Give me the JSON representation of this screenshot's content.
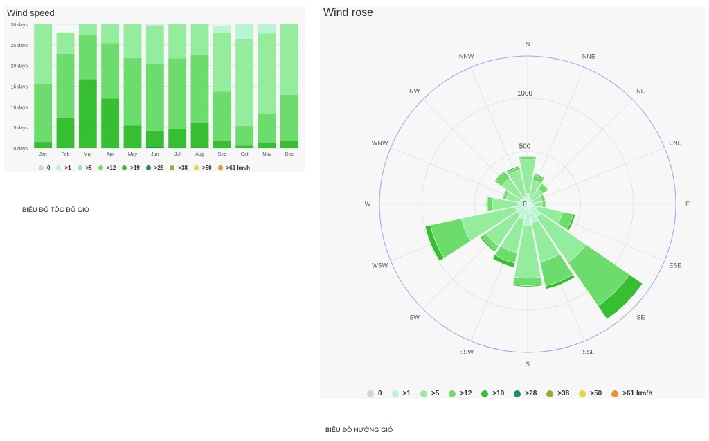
{
  "wind_speed": {
    "title": "Wind speed",
    "caption": "BIỂU ĐỒ TỐC ĐỘ GIÓ"
  },
  "wind_rose": {
    "title": "Wind rose",
    "caption": "BIỂU ĐỒ HƯỚNG GIÓ"
  },
  "legend": [
    {
      "label": "0",
      "color": "#d9d3d6"
    },
    {
      "label": ">1",
      "color": "#b9f5d3"
    },
    {
      "label": ">5",
      "color": "#94ed9c"
    },
    {
      "label": ">12",
      "color": "#6cdc6c"
    },
    {
      "label": ">19",
      "color": "#36bf30"
    },
    {
      "label": ">28",
      "color": "#1f8f55"
    },
    {
      "label": ">38",
      "color": "#8cb32c"
    },
    {
      "label": ">50",
      "color": "#e1d83a"
    },
    {
      "label": ">61 km/h",
      "color": "#e39530"
    }
  ],
  "chart_data": [
    {
      "type": "bar",
      "stacked": true,
      "title": "Wind speed",
      "ylim": [
        0,
        30
      ],
      "yticks": [
        "0 days",
        "5 days",
        "10 days",
        "15 days",
        "20 days",
        "25 days",
        "30 days"
      ],
      "ytick_values": [
        0,
        5,
        10,
        15,
        20,
        25,
        30
      ],
      "categories": [
        "Jan",
        "Feb",
        "Mar",
        "Apr",
        "May",
        "Jun",
        "Jul",
        "Aug",
        "Sep",
        "Oct",
        "Nov",
        "Dec"
      ],
      "series": [
        {
          "name": ">28",
          "color": "#1f8f55",
          "values": [
            0,
            0,
            0,
            0,
            0,
            0.2,
            0.1,
            0.1,
            0,
            0,
            0,
            0
          ]
        },
        {
          "name": ">19",
          "color": "#36bf30",
          "values": [
            1.5,
            7.3,
            16.7,
            12,
            5.5,
            4,
            4.6,
            6,
            1.7,
            0.6,
            1.3,
            1.9
          ]
        },
        {
          "name": ">12",
          "color": "#6cdc6c",
          "values": [
            14,
            15.5,
            10.8,
            13.4,
            16.3,
            16.3,
            17,
            16.5,
            12,
            4.8,
            7,
            11
          ]
        },
        {
          "name": ">5",
          "color": "#94ed9c",
          "values": [
            14.5,
            5.2,
            2.5,
            4.6,
            8.2,
            9,
            8.3,
            7.4,
            14.3,
            21.1,
            19.5,
            17.1
          ]
        },
        {
          "name": ">1",
          "color": "#b9f5d3",
          "values": [
            0,
            0,
            0,
            0,
            0,
            0.4,
            0,
            0,
            1.7,
            3.5,
            2.2,
            0
          ]
        }
      ]
    },
    {
      "type": "polar-stacked-bar",
      "title": "Wind rose",
      "rmax": 1400,
      "rticks": [
        0,
        500,
        1000
      ],
      "directions": [
        "N",
        "NNE",
        "NE",
        "ENE",
        "E",
        "ESE",
        "SE",
        "SSE",
        "S",
        "SSW",
        "SW",
        "WSW",
        "W",
        "WNW",
        "NW",
        "NNW"
      ],
      "series": [
        {
          "name": ">1",
          "color": "#b9f5d3",
          "values": [
            100,
            60,
            50,
            50,
            60,
            100,
            150,
            180,
            200,
            150,
            120,
            120,
            100,
            80,
            70,
            80
          ]
        },
        {
          "name": ">5",
          "color": "#94ed9c",
          "values": [
            330,
            170,
            130,
            90,
            80,
            240,
            520,
            380,
            500,
            320,
            360,
            520,
            230,
            130,
            230,
            250
          ]
        },
        {
          "name": ">12",
          "color": "#6cdc6c",
          "values": [
            20,
            55,
            55,
            30,
            30,
            100,
            500,
            230,
            70,
            100,
            50,
            300,
            50,
            30,
            70,
            30
          ]
        },
        {
          "name": ">19",
          "color": "#36bf30",
          "values": [
            5,
            10,
            5,
            5,
            8,
            20,
            150,
            30,
            10,
            40,
            15,
            50,
            10,
            5,
            10,
            10
          ]
        }
      ]
    }
  ]
}
